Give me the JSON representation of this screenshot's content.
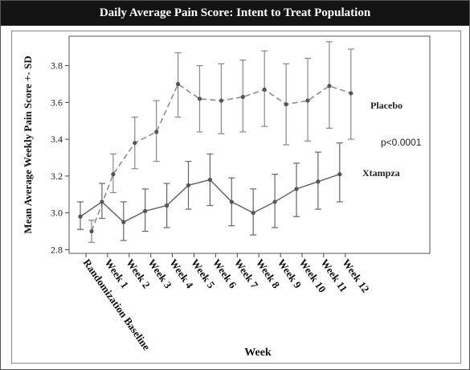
{
  "chart_data": {
    "type": "line",
    "title": "Daily Average Pain Score: Intent to Treat Population",
    "xlabel": "Week",
    "ylabel": "Mean Average Weekly Pain Score +- SD",
    "categories": [
      "Randomization Baseline",
      "Week 1",
      "Week 2",
      "Week 3",
      "Week 4",
      "Week 5",
      "Week 6",
      "Week 7",
      "Week 8",
      "Week 9",
      "Week 10",
      "Week 11",
      "Week 12"
    ],
    "ylim": [
      2.78,
      3.96
    ],
    "yticks": [
      "2.8",
      "3.0",
      "3.2",
      "3.4",
      "3.6",
      "3.8"
    ],
    "series": [
      {
        "name": "Placebo",
        "style": "dashed",
        "color": "#888888",
        "x_offset": 1,
        "values": [
          2.9,
          3.21,
          3.38,
          3.44,
          3.7,
          3.62,
          3.61,
          3.63,
          3.67,
          3.59,
          3.61,
          3.69,
          3.65
        ],
        "err_low": [
          2.84,
          3.11,
          3.24,
          3.28,
          3.52,
          3.44,
          3.43,
          3.44,
          3.47,
          3.37,
          3.39,
          3.46,
          3.4
        ],
        "err_high": [
          2.96,
          3.32,
          3.52,
          3.61,
          3.87,
          3.8,
          3.81,
          3.83,
          3.88,
          3.81,
          3.84,
          3.93,
          3.89
        ]
      },
      {
        "name": "Xtampza",
        "style": "solid",
        "color": "#666666",
        "x_offset": 0,
        "values": [
          2.98,
          3.06,
          2.95,
          3.01,
          3.04,
          3.15,
          3.18,
          3.06,
          3.0,
          3.06,
          3.13,
          3.17,
          3.21
        ],
        "err_low": [
          2.91,
          2.97,
          2.85,
          2.9,
          2.92,
          3.02,
          3.04,
          2.93,
          2.88,
          2.92,
          2.98,
          3.02,
          3.06
        ],
        "err_high": [
          3.06,
          3.16,
          3.06,
          3.13,
          3.16,
          3.28,
          3.32,
          3.19,
          3.13,
          3.21,
          3.27,
          3.33,
          3.38
        ]
      }
    ],
    "annotation": "p<0.0001",
    "grid": false
  }
}
